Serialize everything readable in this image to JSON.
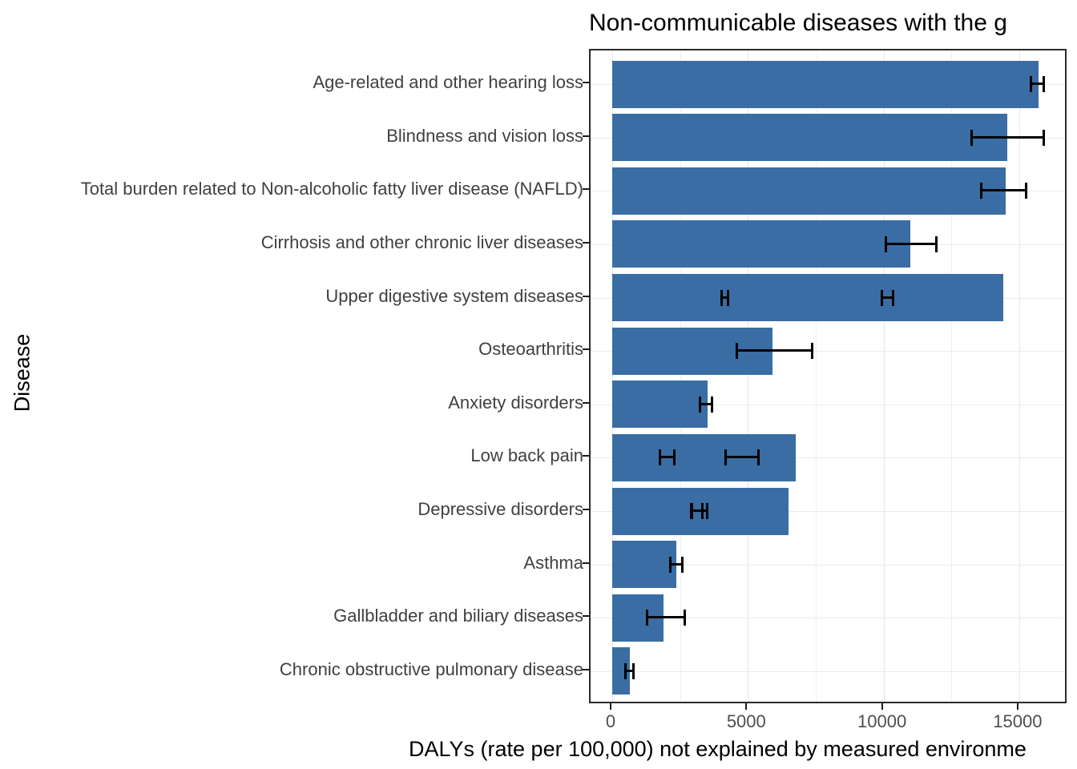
{
  "chart_data": {
    "type": "bar",
    "orientation": "horizontal",
    "title": "Non-communicable diseases with the g",
    "title_note": "title clipped at right edge of image",
    "xlabel": "DALYs (rate per 100,000) not explained by measured environme",
    "ylabel": "Disease",
    "categories": [
      "Age-related and other hearing loss",
      "Blindness and vision loss",
      "Total burden related to Non-alcoholic fatty liver disease (NAFLD)",
      "Cirrhosis and other chronic liver diseases",
      "Upper digestive system diseases",
      "Osteoarthritis",
      "Anxiety disorders",
      "Low back pain",
      "Depressive disorders",
      "Asthma",
      "Gallbladder and biliary diseases",
      "Chronic obstructive pulmonary disease"
    ],
    "values": [
      15700,
      14550,
      14500,
      11000,
      14400,
      5900,
      3500,
      6760,
      6490,
      2360,
      1900,
      650
    ],
    "error_bars": [
      [
        [
          15400,
          15950
        ]
      ],
      [
        [
          13200,
          15950
        ]
      ],
      [
        [
          13550,
          15300
        ]
      ],
      [
        [
          10050,
          12000
        ]
      ],
      [
        [
          3980,
          4320
        ],
        [
          9900,
          10400
        ]
      ],
      [
        [
          4550,
          7400
        ]
      ],
      [
        [
          3200,
          3730
        ]
      ],
      [
        [
          1700,
          2320
        ],
        [
          4130,
          5430
        ]
      ],
      [
        [
          2870,
          3370
        ],
        [
          2900,
          3540
        ]
      ],
      [
        [
          2090,
          2630
        ]
      ],
      [
        [
          1250,
          2710
        ]
      ],
      [
        [
          430,
          830
        ]
      ]
    ],
    "x_ticks": [
      0,
      5000,
      10000,
      15000
    ],
    "x_tick_labels": [
      "0",
      "5000",
      "10000",
      "15000"
    ],
    "minor_gridlines": [
      2500,
      7500,
      12500
    ],
    "xlim": [
      0,
      16800
    ],
    "grid": "on",
    "legend": "none",
    "bar_color": "#3a6da4",
    "error_color": "#000000"
  }
}
